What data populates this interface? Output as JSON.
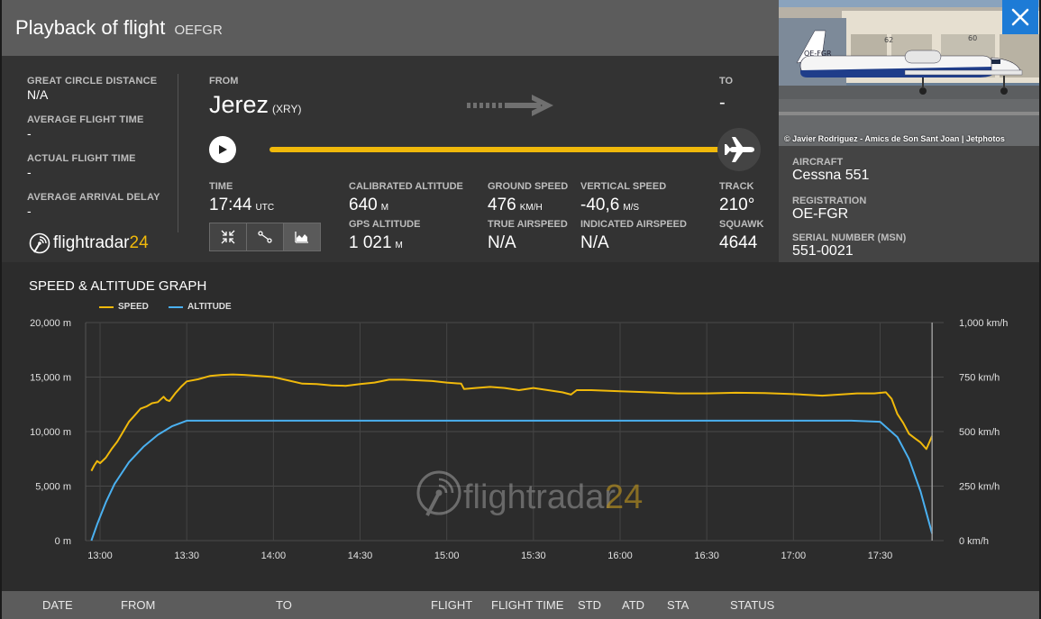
{
  "header": {
    "title": "Playback of flight",
    "callsign": "OEFGR"
  },
  "close_icon": "close-icon",
  "photo": {
    "credit": "© Javier Rodriguez - Amics de Son Sant Joan | Jetphotos",
    "reg_text": "OE-FGR"
  },
  "stats": {
    "distance_label": "GREAT CIRCLE DISTANCE",
    "distance_value": "N/A",
    "avg_time_label": "AVERAGE FLIGHT TIME",
    "avg_time_value": "-",
    "actual_time_label": "ACTUAL FLIGHT TIME",
    "actual_time_value": "-",
    "delay_label": "AVERAGE ARRIVAL DELAY",
    "delay_value": "-"
  },
  "logo": {
    "main": "flightradar",
    "suffix": "24"
  },
  "route": {
    "from_label": "FROM",
    "from_city": "Jerez",
    "from_code": "(XRY)",
    "to_label": "TO",
    "to_value": "-"
  },
  "telemetry": {
    "time_label": "TIME",
    "time_value": "17:44",
    "time_unit": "UTC",
    "cal_alt_label": "CALIBRATED ALTITUDE",
    "cal_alt_value": "640",
    "cal_alt_unit": "M",
    "gps_alt_label": "GPS ALTITUDE",
    "gps_alt_value": "1 021",
    "gps_alt_unit": "M",
    "gs_label": "GROUND SPEED",
    "gs_value": "476",
    "gs_unit": "KM/H",
    "tas_label": "TRUE AIRSPEED",
    "tas_value": "N/A",
    "vs_label": "VERTICAL SPEED",
    "vs_value": "-40,6",
    "vs_unit": "M/S",
    "ias_label": "INDICATED AIRSPEED",
    "ias_value": "N/A",
    "track_label": "TRACK",
    "track_value": "210°",
    "squawk_label": "SQUAWK",
    "squawk_value": "4644"
  },
  "playback": {
    "progress": 1.0
  },
  "aircraft": {
    "aircraft_label": "AIRCRAFT",
    "aircraft_value": "Cessna 551",
    "reg_label": "REGISTRATION",
    "reg_value": "OE-FGR",
    "msn_label": "SERIAL NUMBER (MSN)",
    "msn_value": "551-0021"
  },
  "graph": {
    "title": "SPEED & ALTITUDE GRAPH",
    "legend_speed": "SPEED",
    "legend_altitude": "ALTITUDE",
    "watermark_main": "flightradar",
    "watermark_suffix": "24"
  },
  "colors": {
    "speed": "#f0b90b",
    "altitude": "#4ab0f0",
    "accent": "#1d7bd6"
  },
  "chart_data": {
    "type": "line",
    "title": "SPEED & ALTITUDE GRAPH",
    "x_tick_labels": [
      "13:00",
      "13:30",
      "14:00",
      "14:30",
      "15:00",
      "15:30",
      "16:00",
      "16:30",
      "17:00",
      "17:30"
    ],
    "y_left_tick_labels": [
      "0 m",
      "5,000 m",
      "10,000 m",
      "15,000 m",
      "20,000 m"
    ],
    "y_right_tick_labels": [
      "0 km/h",
      "250 km/h",
      "500 km/h",
      "750 km/h",
      "1,000 km/h"
    ],
    "ylim_left": [
      0,
      20000
    ],
    "ylim_right": [
      0,
      1000
    ],
    "xlim_minutes": [
      -5,
      292
    ],
    "grid": true,
    "legend_placement": "top-left",
    "series": [
      {
        "name": "SPEED",
        "axis": "right",
        "unit": "km/h",
        "x_minutes": [
          -3,
          -2,
          -1,
          0,
          2,
          4,
          6,
          8,
          10,
          12,
          14,
          16,
          18,
          20,
          22,
          23,
          24,
          26,
          28,
          30,
          34,
          38,
          42,
          46,
          50,
          55,
          60,
          65,
          70,
          75,
          80,
          85,
          90,
          95,
          100,
          105,
          110,
          115,
          120,
          125,
          126,
          130,
          135,
          140,
          145,
          150,
          155,
          160,
          163,
          165,
          170,
          180,
          190,
          200,
          210,
          220,
          230,
          240,
          250,
          256,
          262,
          268,
          272,
          274,
          276,
          278,
          280,
          282,
          284,
          286,
          288
        ],
        "values": [
          320,
          345,
          365,
          355,
          380,
          420,
          455,
          500,
          545,
          575,
          605,
          615,
          630,
          635,
          660,
          645,
          640,
          675,
          705,
          730,
          740,
          755,
          760,
          762,
          760,
          755,
          750,
          735,
          720,
          718,
          712,
          710,
          718,
          725,
          738,
          738,
          735,
          732,
          725,
          720,
          695,
          700,
          705,
          700,
          690,
          700,
          690,
          680,
          670,
          690,
          690,
          685,
          680,
          675,
          675,
          678,
          677,
          672,
          665,
          670,
          675,
          675,
          680,
          650,
          580,
          540,
          490,
          470,
          450,
          420,
          480
        ],
        "end_value": 476
      },
      {
        "name": "ALTITUDE",
        "axis": "left",
        "unit": "m",
        "x_minutes": [
          -3,
          -1,
          2,
          5,
          10,
          15,
          20,
          25,
          30,
          60,
          90,
          120,
          150,
          180,
          210,
          240,
          260,
          270,
          276,
          280,
          284,
          288
        ],
        "values": [
          0,
          1500,
          3500,
          5200,
          7200,
          8600,
          9700,
          10500,
          11000,
          11000,
          11000,
          11000,
          11000,
          11000,
          11000,
          11000,
          11000,
          10900,
          9500,
          7500,
          4500,
          640
        ]
      }
    ]
  },
  "table": {
    "col_date": "DATE",
    "col_from": "FROM",
    "col_to": "TO",
    "col_flight": "FLIGHT",
    "col_flight_time": "FLIGHT TIME",
    "col_std": "STD",
    "col_atd": "ATD",
    "col_sta": "STA",
    "col_status": "STATUS"
  }
}
